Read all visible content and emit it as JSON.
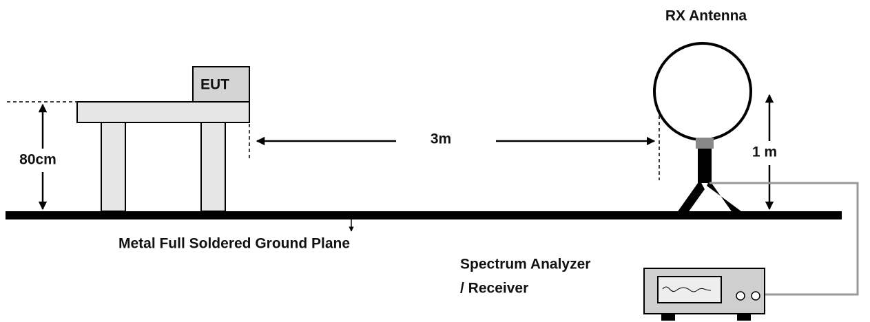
{
  "labels": {
    "rx_antenna": "RX Antenna",
    "eut": "EUT",
    "table_height": "80cm",
    "distance": "3m",
    "antenna_height": "1 m",
    "ground_plane": "Metal Full Soldered Ground Plane",
    "analyzer": [
      "Spectrum Analyzer",
      "/ Receiver"
    ]
  }
}
